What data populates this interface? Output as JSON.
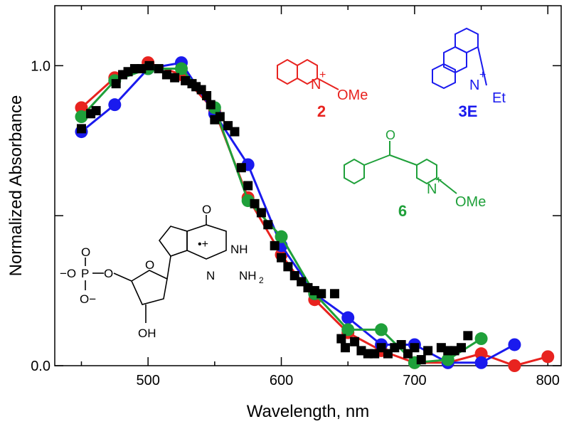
{
  "chart_data": {
    "type": "scatter",
    "xlabel": "Wavelength, nm",
    "ylabel": "Normalized Absorbance",
    "xlim": [
      430,
      810
    ],
    "ylim": [
      0.0,
      1.2
    ],
    "x_ticks": [
      500,
      600,
      700,
      800
    ],
    "x_tick_labels": [
      "500",
      "600",
      "700",
      "800"
    ],
    "y_ticks": [
      0.0,
      0.5,
      1.0
    ],
    "y_tick_labels": [
      "0.0",
      "",
      "1.0"
    ],
    "grid": false,
    "series": [
      {
        "name": "2",
        "color": "#e8231f",
        "marker": "circle",
        "line": true,
        "x": [
          450,
          475,
          500,
          525,
          550,
          575,
          600,
          625,
          650,
          675,
          700,
          725,
          750,
          775,
          800
        ],
        "y": [
          0.86,
          0.96,
          1.01,
          0.97,
          0.85,
          0.56,
          0.37,
          0.22,
          0.11,
          0.05,
          0.01,
          0.01,
          0.04,
          0.0,
          0.03
        ]
      },
      {
        "name": "3E",
        "color": "#1a1aee",
        "marker": "circle",
        "line": true,
        "x": [
          450,
          475,
          500,
          525,
          550,
          575,
          600,
          625,
          650,
          675,
          700,
          725,
          750,
          775
        ],
        "y": [
          0.78,
          0.87,
          0.99,
          1.01,
          0.84,
          0.67,
          0.4,
          0.24,
          0.16,
          0.07,
          0.07,
          0.01,
          0.01,
          0.07
        ]
      },
      {
        "name": "6",
        "color": "#1fa03a",
        "marker": "circle",
        "line": true,
        "x": [
          450,
          475,
          500,
          525,
          550,
          575,
          600,
          625,
          650,
          675,
          700,
          725,
          750
        ],
        "y": [
          0.83,
          0.95,
          0.99,
          0.99,
          0.86,
          0.55,
          0.43,
          0.24,
          0.12,
          0.12,
          0.01,
          0.02,
          0.09
        ]
      },
      {
        "name": "",
        "color": "#000000",
        "marker": "square",
        "line": false,
        "x": [
          450,
          457,
          461,
          476,
          481,
          485,
          490,
          495,
          501,
          508,
          514,
          520,
          528,
          533,
          536,
          540,
          544,
          547,
          550,
          554,
          560,
          565,
          570,
          575,
          580,
          585,
          590,
          595,
          600,
          605,
          610,
          615,
          620,
          625,
          630,
          640,
          645,
          648,
          655,
          660,
          665,
          670,
          675,
          680,
          685,
          690,
          695,
          700,
          705,
          710,
          720,
          725,
          730,
          735,
          740
        ],
        "y": [
          0.79,
          0.84,
          0.85,
          0.94,
          0.97,
          0.98,
          0.99,
          0.99,
          1.0,
          0.99,
          0.97,
          0.96,
          0.95,
          0.94,
          0.93,
          0.92,
          0.9,
          0.87,
          0.82,
          0.83,
          0.8,
          0.78,
          0.66,
          0.6,
          0.54,
          0.51,
          0.47,
          0.4,
          0.36,
          0.33,
          0.3,
          0.28,
          0.26,
          0.25,
          0.24,
          0.24,
          0.09,
          0.06,
          0.08,
          0.05,
          0.04,
          0.04,
          0.06,
          0.04,
          0.06,
          0.07,
          0.04,
          0.06,
          0.02,
          0.05,
          0.06,
          0.05,
          0.05,
          0.06,
          0.1
        ]
      }
    ]
  },
  "annotations": {
    "compound_2": {
      "label": "2",
      "substituent": "OMe",
      "charge": "+",
      "atom": "N",
      "color": "#e8231f"
    },
    "compound_3E": {
      "label": "3E",
      "substituent": "Et",
      "charge": "+",
      "atom": "N",
      "color": "#1a1aee"
    },
    "compound_6": {
      "label": "6",
      "substituent": "OMe",
      "charge": "+",
      "atom": "N",
      "carbonyl": "O",
      "color": "#1fa03a"
    },
    "guanosine": {
      "phosphate_charge1": "−O",
      "phosphate_p": "P",
      "phosphate_o_top": "O",
      "phosphate_o_bottom": "O−",
      "phosphate_o_link": "O",
      "nh": "NH",
      "nh2": "NH",
      "nh2_sub": "2",
      "n_ring": "N",
      "oh": "OH",
      "radical_cation": "•+",
      "o_carbonyl": "O",
      "o_ribose": "O",
      "color": "#000000"
    }
  }
}
